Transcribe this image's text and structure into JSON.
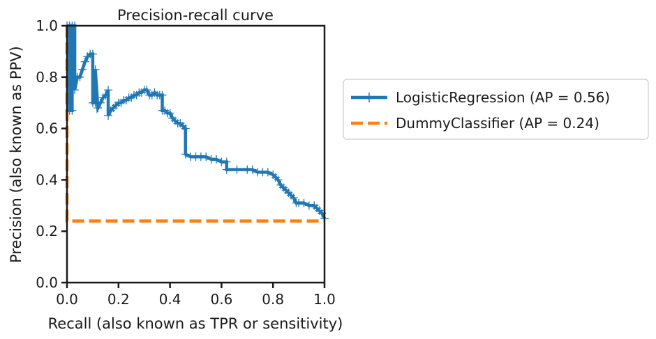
{
  "chart_data": {
    "type": "line",
    "title": "Precision-recall curve",
    "xlabel": "Recall (also known as TPR or sensitivity)",
    "ylabel": "Precision (also known as PPV)",
    "xlim": [
      0.0,
      1.0
    ],
    "ylim": [
      0.0,
      1.0
    ],
    "xticks": [
      "0.0",
      "0.2",
      "0.4",
      "0.6",
      "0.8",
      "1.0"
    ],
    "yticks": [
      "0.0",
      "0.2",
      "0.4",
      "0.6",
      "0.8",
      "1.0"
    ],
    "grid": false,
    "legend_placement": "right-outside",
    "series": [
      {
        "name": "LogisticRegression (AP = 0.56)",
        "color": "#1f77b4",
        "style": "solid-with-plus-markers",
        "x": [
          0.0,
          0.01,
          0.01,
          0.02,
          0.02,
          0.03,
          0.03,
          0.04,
          0.05,
          0.06,
          0.07,
          0.08,
          0.09,
          0.1,
          0.1,
          0.11,
          0.11,
          0.12,
          0.13,
          0.14,
          0.15,
          0.16,
          0.16,
          0.17,
          0.18,
          0.19,
          0.2,
          0.21,
          0.22,
          0.23,
          0.24,
          0.25,
          0.26,
          0.27,
          0.28,
          0.29,
          0.3,
          0.31,
          0.32,
          0.33,
          0.34,
          0.35,
          0.36,
          0.37,
          0.37,
          0.38,
          0.39,
          0.4,
          0.41,
          0.42,
          0.43,
          0.44,
          0.45,
          0.46,
          0.46,
          0.48,
          0.5,
          0.52,
          0.54,
          0.56,
          0.58,
          0.6,
          0.62,
          0.62,
          0.66,
          0.7,
          0.72,
          0.74,
          0.76,
          0.78,
          0.8,
          0.81,
          0.82,
          0.83,
          0.84,
          0.85,
          0.86,
          0.87,
          0.88,
          0.89,
          0.9,
          0.92,
          0.94,
          0.96,
          0.97,
          0.98,
          0.99,
          1.0
        ],
        "y": [
          1.0,
          1.0,
          0.67,
          0.67,
          1.0,
          1.0,
          0.75,
          0.8,
          0.8,
          0.83,
          0.86,
          0.88,
          0.89,
          0.89,
          0.7,
          0.7,
          0.83,
          0.68,
          0.7,
          0.72,
          0.73,
          0.75,
          0.65,
          0.67,
          0.68,
          0.69,
          0.7,
          0.7,
          0.71,
          0.71,
          0.72,
          0.72,
          0.73,
          0.73,
          0.74,
          0.74,
          0.75,
          0.75,
          0.73,
          0.73,
          0.74,
          0.73,
          0.73,
          0.73,
          0.67,
          0.67,
          0.66,
          0.66,
          0.64,
          0.63,
          0.62,
          0.62,
          0.61,
          0.6,
          0.5,
          0.49,
          0.49,
          0.49,
          0.49,
          0.48,
          0.48,
          0.47,
          0.47,
          0.44,
          0.44,
          0.44,
          0.44,
          0.43,
          0.43,
          0.43,
          0.42,
          0.41,
          0.4,
          0.38,
          0.37,
          0.36,
          0.35,
          0.34,
          0.33,
          0.31,
          0.31,
          0.31,
          0.3,
          0.3,
          0.29,
          0.28,
          0.27,
          0.25
        ]
      },
      {
        "name": "DummyClassifier (AP = 0.24)",
        "color": "#ff7f0e",
        "style": "dashed",
        "x": [
          0.0,
          0.0,
          1.0
        ],
        "y": [
          1.0,
          0.24,
          0.24
        ]
      }
    ]
  }
}
